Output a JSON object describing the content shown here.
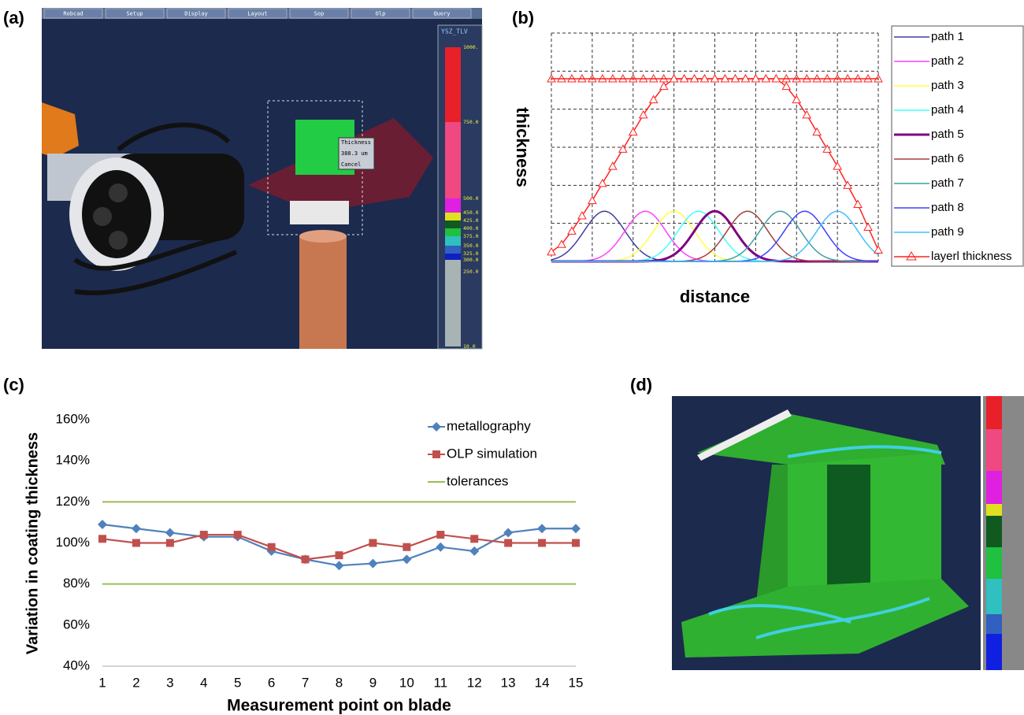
{
  "panel_labels": [
    "(a)",
    "(b)",
    "(c)",
    "(d)"
  ],
  "simulation_view": {
    "menu": [
      "Robcad",
      "Setup",
      "Display",
      "Layout",
      "Sop",
      "Olp",
      "Query"
    ],
    "colorbar_title": "YSZ_TLV",
    "colorbar_labels": [
      "1000.",
      "750.0",
      "500.0",
      "450.0",
      "425.0",
      "400.0",
      "375.0",
      "350.0",
      "325.0",
      "300.0",
      "250.0",
      "10.0"
    ],
    "dialog": [
      "Thickness",
      "388.3 um",
      "Cancel"
    ]
  },
  "chart_data": [
    {
      "type": "profile",
      "x_label": "distance",
      "y_label": "thickness",
      "xlim": [
        0,
        8
      ],
      "ylim": [
        0,
        6
      ],
      "grid": true,
      "series": [
        {
          "name": "path 1",
          "color": "#3f3fa0",
          "center": 1.3,
          "height": 1.32,
          "width": 0.5
        },
        {
          "name": "path 2",
          "color": "#ff40ff",
          "center": 2.3,
          "height": 1.32,
          "width": 0.5
        },
        {
          "name": "path 3",
          "color": "#ffff40",
          "center": 3.0,
          "height": 1.32,
          "width": 0.5
        },
        {
          "name": "path 4",
          "color": "#40ffff",
          "center": 3.6,
          "height": 1.32,
          "width": 0.5
        },
        {
          "name": "path 5",
          "color": "#800080",
          "center": 4.0,
          "height": 1.32,
          "width": 0.5
        },
        {
          "name": "path 6",
          "color": "#a0403f",
          "center": 4.8,
          "height": 1.32,
          "width": 0.5
        },
        {
          "name": "path 7",
          "color": "#3f9f9f",
          "center": 5.6,
          "height": 1.32,
          "width": 0.5
        },
        {
          "name": "path 8",
          "color": "#4040ff",
          "center": 6.2,
          "height": 1.32,
          "width": 0.5
        },
        {
          "name": "path 9",
          "color": "#40c0ff",
          "center": 7.0,
          "height": 1.32,
          "width": 0.5
        },
        {
          "name": "layerl thickness",
          "color": "#ff2020",
          "plateau": 4.8,
          "x": [
            0,
            0.25,
            0.5,
            0.75,
            1,
            1.25,
            1.5,
            1.75,
            2,
            2.25,
            2.5,
            2.75,
            3,
            3.25,
            3.5,
            3.75,
            4,
            4.25,
            4.5,
            4.75,
            5,
            5.25,
            5.5,
            5.75,
            6,
            6.25,
            6.5,
            6.75,
            7,
            7.25,
            7.5,
            7.75,
            8
          ],
          "values": [
            0.25,
            0.45,
            0.8,
            1.2,
            1.6,
            2.05,
            2.5,
            2.95,
            3.4,
            3.85,
            4.25,
            4.6,
            4.8,
            4.8,
            4.8,
            4.8,
            4.8,
            4.8,
            4.8,
            4.8,
            4.8,
            4.8,
            4.8,
            4.6,
            4.25,
            3.85,
            3.4,
            2.95,
            2.5,
            2.0,
            1.5,
            0.9,
            0.3
          ]
        }
      ]
    },
    {
      "type": "line",
      "x_label": "Measurement point on blade",
      "y_label": "Variation in coating thickness",
      "x": [
        1,
        2,
        3,
        4,
        5,
        6,
        7,
        8,
        9,
        10,
        11,
        12,
        13,
        14,
        15
      ],
      "xlim": [
        1,
        15
      ],
      "xticks": [
        1,
        2,
        3,
        4,
        5,
        6,
        7,
        8,
        9,
        10,
        11,
        12,
        13,
        14,
        15
      ],
      "ylim": [
        40,
        160
      ],
      "yticks": [
        {
          "value": 40,
          "label": "40%"
        },
        {
          "value": 60,
          "label": "60%"
        },
        {
          "value": 80,
          "label": "80%"
        },
        {
          "value": 100,
          "label": "100%"
        },
        {
          "value": 120,
          "label": "120%"
        },
        {
          "value": 140,
          "label": "140%"
        },
        {
          "value": 160,
          "label": "160%"
        }
      ],
      "series": [
        {
          "name": "metallography",
          "color": "#4f81bd",
          "marker": "diamond",
          "values": [
            109,
            107,
            105,
            103,
            103,
            96,
            92,
            89,
            90,
            92,
            98,
            96,
            105,
            107,
            107
          ]
        },
        {
          "name": "OLP simulation",
          "color": "#c0504d",
          "marker": "square",
          "values": [
            102,
            100,
            100,
            104,
            104,
            98,
            92,
            94,
            100,
            98,
            104,
            102,
            100,
            100,
            100
          ]
        }
      ],
      "tolerances": {
        "name": "tolerances",
        "color": "#9bbb59",
        "values": [
          120,
          80
        ]
      }
    }
  ]
}
